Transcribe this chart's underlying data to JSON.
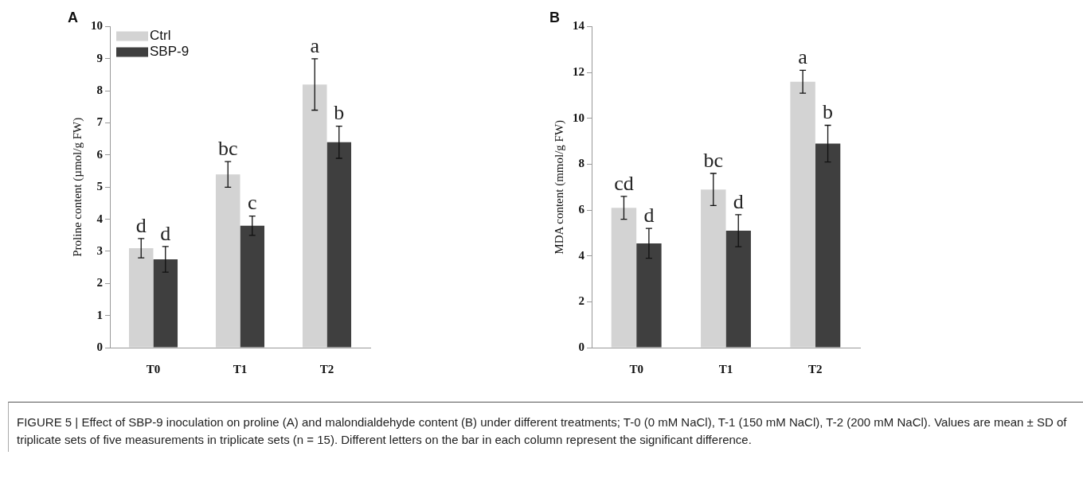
{
  "chart_data": [
    {
      "type": "bar",
      "title": "A",
      "ylabel": "Proline content (µmol/g FW)",
      "categories": [
        "T0",
        "T1",
        "T2"
      ],
      "ylim": [
        0,
        10
      ],
      "yticks": [
        0,
        1,
        2,
        3,
        4,
        5,
        6,
        7,
        8,
        9,
        10
      ],
      "grid": false,
      "legend": "top left",
      "series": [
        {
          "name": "Ctrl",
          "color": "#d3d3d3",
          "values": [
            3.1,
            5.4,
            8.2
          ],
          "errors": [
            0.3,
            0.4,
            0.8
          ],
          "value_labels": [
            "d",
            "bc",
            "a"
          ]
        },
        {
          "name": "SBP-9",
          "color": "#3f3f3f",
          "values": [
            2.75,
            3.8,
            6.4
          ],
          "errors": [
            0.4,
            0.3,
            0.5
          ],
          "value_labels": [
            "d",
            "c",
            "b"
          ]
        }
      ],
      "annotations": [
        "FIGURE 5 | Effect of SBP-9 inoculation on proline (A) and malondialdehyde content (B) under different treatments; T-0 (0 mM NaCl), T-1 (150 mM NaCl), T-2 (200 mM NaCl). Values are mean ± SD of triplicate sets of five measurements in triplicate sets (n = 15). Different letters on the bar in each column represent the significant difference."
      ]
    },
    {
      "type": "bar",
      "title": "B",
      "ylabel": "MDA content (mmol/g FW)",
      "categories": [
        "T0",
        "T1",
        "T2"
      ],
      "ylim": [
        0,
        14
      ],
      "yticks": [
        0,
        2,
        4,
        6,
        8,
        10,
        12,
        14
      ],
      "grid": false,
      "series": [
        {
          "color": "#d3d3d3",
          "values": [
            6.1,
            6.9,
            11.6
          ],
          "errors": [
            0.5,
            0.7,
            0.5
          ],
          "value_labels": [
            "cd",
            "bc",
            "a"
          ]
        },
        {
          "color": "#3f3f3f",
          "values": [
            4.55,
            5.1,
            8.9
          ],
          "errors": [
            0.65,
            0.7,
            0.8
          ],
          "value_labels": [
            "d",
            "d",
            "b"
          ]
        }
      ]
    }
  ]
}
